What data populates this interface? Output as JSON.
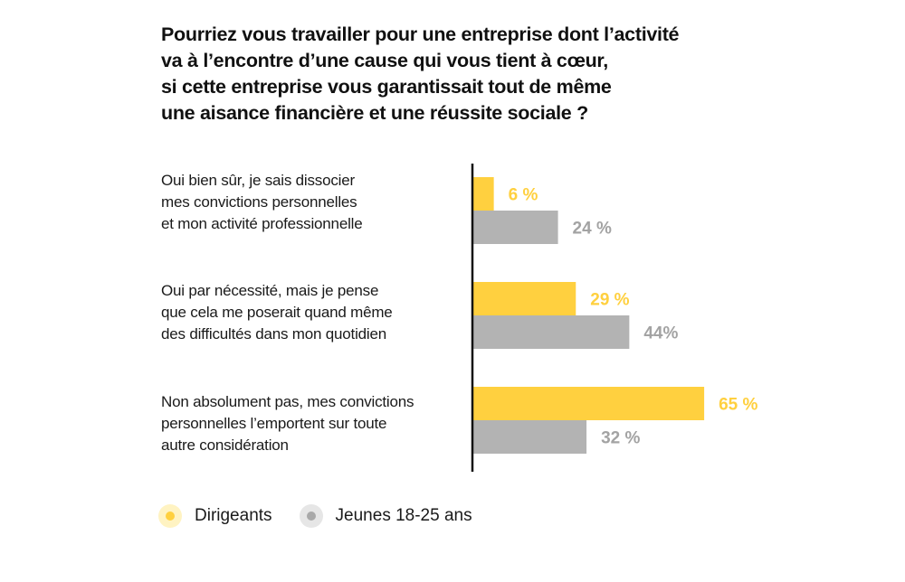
{
  "chart_data": {
    "type": "bar",
    "orientation": "horizontal",
    "title_lines": [
      "Pourriez vous travailler pour une entreprise dont l’activité",
      "va à l’encontre d’une cause qui vous tient à cœur,",
      "si cette entreprise vous garantissait tout de même",
      "une aisance financière et une réussite sociale ?"
    ],
    "categories": [
      {
        "label_lines": [
          "Oui bien sûr, je sais dissocier",
          "mes convictions personnelles",
          "et mon activité professionnelle"
        ]
      },
      {
        "label_lines": [
          "Oui par nécessité, mais je pense",
          "que cela me poserait quand même",
          "des difficultés dans mon quotidien"
        ]
      },
      {
        "label_lines": [
          "Non absolument pas, mes convictions",
          "personnelles l’emportent sur toute",
          "autre considération"
        ]
      }
    ],
    "series": [
      {
        "name": "Dirigeants",
        "color": "#ffd03f",
        "values": [
          6,
          29,
          65
        ],
        "value_labels": [
          "6 %",
          "29 %",
          "65 %"
        ]
      },
      {
        "name": "Jeunes 18-25 ans",
        "color": "#b3b3b3",
        "label_color": "#a3a3a3",
        "values": [
          24,
          44,
          32
        ],
        "value_labels": [
          "24 %",
          "44%",
          "32 %"
        ]
      }
    ],
    "xlim": [
      0,
      100
    ],
    "grid": false,
    "legend_position": "bottom-left"
  }
}
